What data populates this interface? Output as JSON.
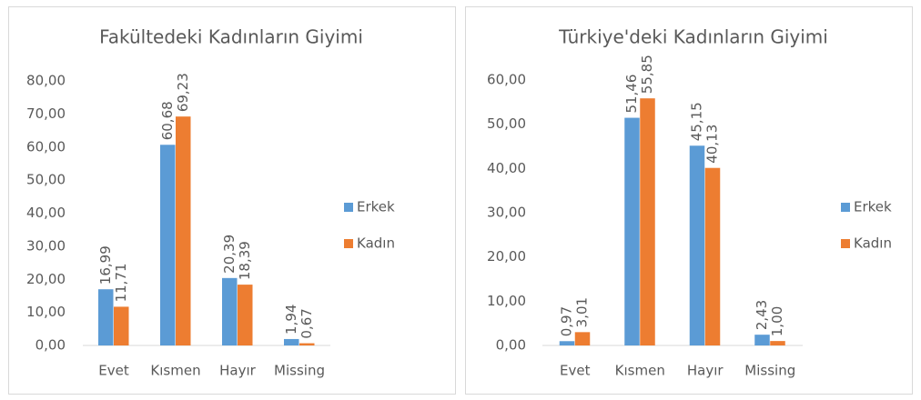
{
  "chart_data": [
    {
      "type": "bar",
      "title": "Fakültedeki Kadınların Giyimi",
      "categories": [
        "Evet",
        "Kısmen",
        "Hayır",
        "Missing"
      ],
      "series": [
        {
          "name": "Erkek",
          "color": "#5b9bd5",
          "values": [
            16.99,
            60.68,
            20.39,
            1.94
          ],
          "value_labels": [
            "16,99",
            "60,68",
            "20,39",
            "1,94"
          ]
        },
        {
          "name": "Kadın",
          "color": "#ed7d31",
          "values": [
            11.71,
            69.23,
            18.39,
            0.67
          ],
          "value_labels": [
            "11,71",
            "69,23",
            "18,39",
            "0,67"
          ]
        }
      ],
      "ylim": [
        0,
        80
      ],
      "yticks": [
        {
          "value": 0,
          "label": "0,00"
        },
        {
          "value": 10,
          "label": "10,00"
        },
        {
          "value": 20,
          "label": "20,00"
        },
        {
          "value": 30,
          "label": "30,00"
        },
        {
          "value": 40,
          "label": "40,00"
        },
        {
          "value": 50,
          "label": "50,00"
        },
        {
          "value": 60,
          "label": "60,00"
        },
        {
          "value": 70,
          "label": "70,00"
        },
        {
          "value": 80,
          "label": "80,00"
        }
      ],
      "legend": "right"
    },
    {
      "type": "bar",
      "title": "Türkiye'deki Kadınların Giyimi",
      "categories": [
        "Evet",
        "Kısmen",
        "Hayır",
        "Missing"
      ],
      "series": [
        {
          "name": "Erkek",
          "color": "#5b9bd5",
          "values": [
            0.97,
            51.46,
            45.15,
            2.43
          ],
          "value_labels": [
            "0,97",
            "51,46",
            "45,15",
            "2,43"
          ]
        },
        {
          "name": "Kadın",
          "color": "#ed7d31",
          "values": [
            3.01,
            55.85,
            40.13,
            1.0
          ],
          "value_labels": [
            "3,01",
            "55,85",
            "40,13",
            "1,00"
          ]
        }
      ],
      "ylim": [
        0,
        60
      ],
      "yticks": [
        {
          "value": 0,
          "label": "0,00"
        },
        {
          "value": 10,
          "label": "10,00"
        },
        {
          "value": 20,
          "label": "20,00"
        },
        {
          "value": 30,
          "label": "30,00"
        },
        {
          "value": 40,
          "label": "40,00"
        },
        {
          "value": 50,
          "label": "50,00"
        },
        {
          "value": 60,
          "label": "60,00"
        }
      ],
      "legend": "right"
    }
  ]
}
